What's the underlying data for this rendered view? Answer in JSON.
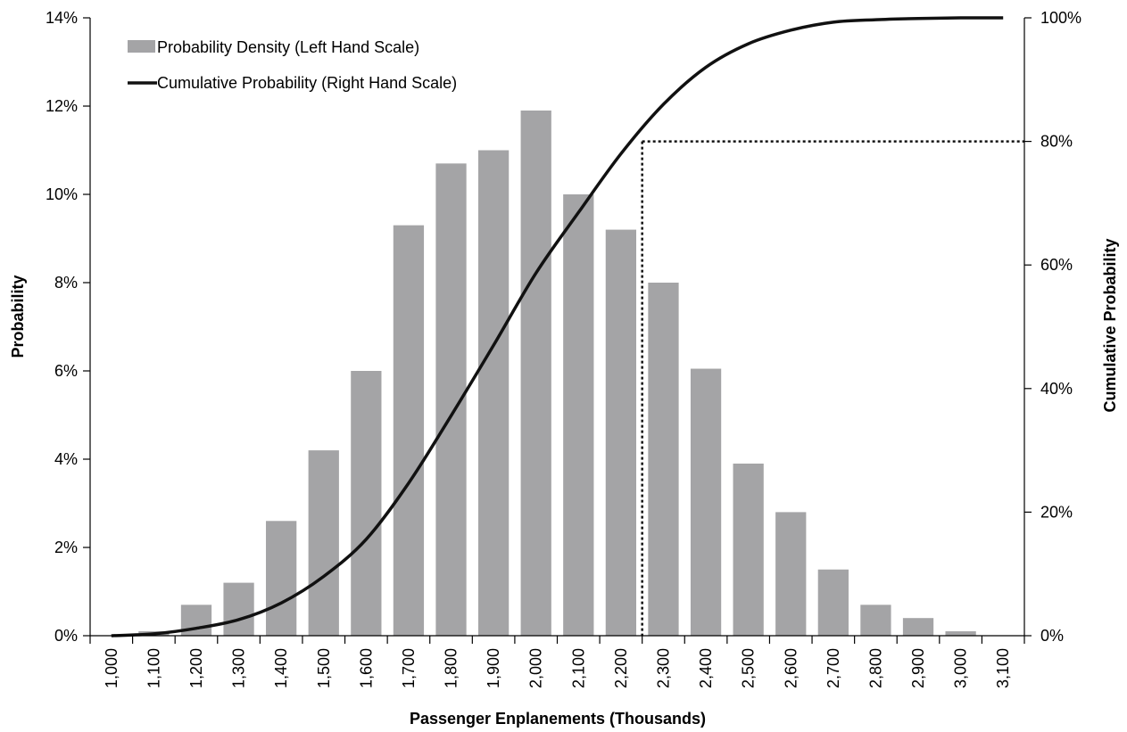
{
  "chart_data": {
    "type": "bar",
    "categories": [
      "1,000",
      "1,100",
      "1,200",
      "1,300",
      "1,400",
      "1,500",
      "1,600",
      "1,700",
      "1,800",
      "1,900",
      "2,000",
      "2,100",
      "2,200",
      "2,300",
      "2,400",
      "2,500",
      "2,600",
      "2,700",
      "2,800",
      "2,900",
      "3,000",
      "3,100"
    ],
    "x": [
      1000,
      1100,
      1200,
      1300,
      1400,
      1500,
      1600,
      1700,
      1800,
      1900,
      2000,
      2100,
      2200,
      2300,
      2400,
      2500,
      2600,
      2700,
      2800,
      2900,
      3000,
      3100
    ],
    "series": [
      {
        "name": "Probability Density (Left Hand Scale)",
        "type": "bar",
        "axis": "left",
        "color": "#a4a4a6",
        "values": [
          null,
          0.1,
          0.7,
          1.2,
          2.6,
          4.2,
          6.0,
          9.3,
          10.7,
          11.0,
          11.9,
          10.0,
          9.2,
          8.0,
          6.05,
          3.9,
          2.8,
          1.5,
          0.7,
          0.4,
          0.1,
          null
        ]
      },
      {
        "name": "Cumulative Probability (Right Hand Scale)",
        "type": "line",
        "axis": "right",
        "color": "#111111",
        "x": [
          1000,
          1100,
          1200,
          1300,
          1400,
          1500,
          1600,
          1700,
          1800,
          1900,
          2000,
          2100,
          2200,
          2300,
          2400,
          2500,
          2600,
          2700,
          2800,
          2900,
          3000,
          3100
        ],
        "values": [
          0,
          0.3,
          1.2,
          2.6,
          5.3,
          9.6,
          15.6,
          24.7,
          35.6,
          47.0,
          58.7,
          68.5,
          78.0,
          86.0,
          92.0,
          95.8,
          98.0,
          99.3,
          99.7,
          99.9,
          100,
          100
        ]
      }
    ],
    "reference": {
      "x_at_80pct": 2250,
      "y_right": 80
    },
    "xlabel": "Passenger Enplanements (Thousands)",
    "ylabel": "Probability",
    "y2label": "Cumulative Probability",
    "ylim": [
      0,
      14
    ],
    "y2lim": [
      0,
      100
    ],
    "yticks": [
      "0%",
      "2%",
      "4%",
      "6%",
      "8%",
      "10%",
      "12%",
      "14%"
    ],
    "y2ticks": [
      "0%",
      "20%",
      "40%",
      "60%",
      "80%",
      "100%"
    ],
    "legend_position": "top-left",
    "grid": false
  }
}
